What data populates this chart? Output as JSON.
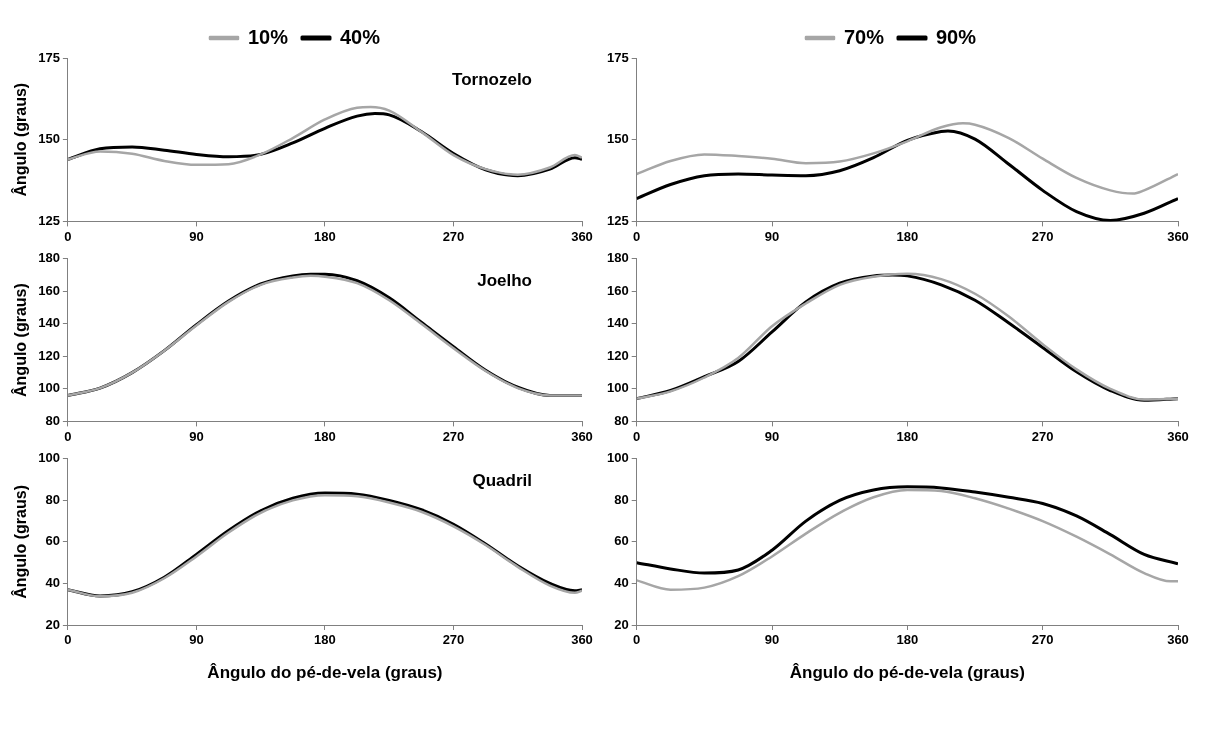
{
  "chart_data": [
    {
      "type": "line",
      "legend": "top",
      "ylabel": "Ângulo (graus)",
      "annotations": [
        "Tornozelo"
      ],
      "xlim": [
        0,
        360
      ],
      "xticks": [
        0,
        90,
        180,
        270,
        360
      ],
      "ylim": [
        125,
        175
      ],
      "yticks": [
        125,
        150,
        175
      ],
      "series": [
        {
          "name": "10%",
          "color": "#a6a6a6",
          "x": [
            0,
            22.5,
            45,
            67.5,
            90,
            112.5,
            135,
            157.5,
            180,
            202.5,
            212,
            225,
            247.5,
            270,
            292.5,
            315,
            337.5,
            355,
            360
          ],
          "values": [
            144,
            146.4,
            145.7,
            143.5,
            142.3,
            142.5,
            145.5,
            150.5,
            156.2,
            159.8,
            160,
            158.9,
            152.4,
            145.3,
            141,
            139.3,
            141.5,
            145.3,
            144.5
          ]
        },
        {
          "name": "40%",
          "color": "#000000",
          "x": [
            0,
            22.5,
            45,
            67.5,
            90,
            112.5,
            135,
            157.5,
            180,
            202.5,
            215,
            225,
            247.5,
            270,
            292.5,
            315,
            337.5,
            355,
            360
          ],
          "values": [
            144,
            147.2,
            147.8,
            146.8,
            145.5,
            144.8,
            145.5,
            149,
            153.5,
            157.2,
            158,
            157.6,
            152.5,
            145.8,
            140.8,
            139,
            141,
            144.5,
            144
          ]
        }
      ]
    },
    {
      "type": "line",
      "legend": "top",
      "xlim": [
        0,
        360
      ],
      "xticks": [
        0,
        90,
        180,
        270,
        360
      ],
      "ylim": [
        125,
        175
      ],
      "yticks": [
        125,
        150,
        175
      ],
      "series": [
        {
          "name": "70%",
          "color": "#a6a6a6",
          "x": [
            0,
            22.5,
            45,
            67.5,
            90,
            112.5,
            135,
            157.5,
            180,
            202.5,
            217,
            225,
            247.5,
            270,
            292.5,
            315,
            330,
            337.5,
            360
          ],
          "values": [
            139.5,
            143.5,
            145.5,
            145,
            144.2,
            142.8,
            143.3,
            145.8,
            149.5,
            153.8,
            155,
            154.6,
            150.5,
            144.2,
            138.3,
            134.5,
            133.5,
            134.5,
            139.5
          ]
        },
        {
          "name": "90%",
          "color": "#000000",
          "x": [
            0,
            22.5,
            45,
            67.5,
            90,
            112.5,
            135,
            157.5,
            180,
            202.5,
            207,
            225,
            247.5,
            270,
            292.5,
            315,
            337.5,
            360
          ],
          "values": [
            132,
            136.3,
            139,
            139.5,
            139.2,
            139,
            140.5,
            144.5,
            149.8,
            152.5,
            152.7,
            150.2,
            142.5,
            134.5,
            128,
            125.3,
            127.5,
            132
          ]
        }
      ]
    },
    {
      "type": "line",
      "ylabel": "Ângulo (graus)",
      "annotations": [
        "Joelho"
      ],
      "xlim": [
        0,
        360
      ],
      "xticks": [
        0,
        90,
        180,
        270,
        360
      ],
      "ylim": [
        80,
        180
      ],
      "yticks": [
        80,
        100,
        120,
        140,
        160,
        180
      ],
      "series": [
        {
          "color": "#a6a6a6",
          "x": [
            0,
            22.5,
            45,
            67.5,
            90,
            112.5,
            135,
            157.5,
            170,
            180,
            202.5,
            225,
            247.5,
            270,
            292.5,
            315,
            337.5,
            360
          ],
          "values": [
            96,
            100.5,
            110,
            123.5,
            139,
            153.5,
            164,
            168.5,
            169.5,
            169,
            165,
            154.5,
            140,
            125,
            111,
            100.5,
            96,
            96
          ]
        },
        {
          "color": "#000000",
          "x": [
            0,
            22.5,
            45,
            67.5,
            90,
            112.5,
            135,
            157.5,
            170,
            180,
            202.5,
            225,
            247.5,
            270,
            292.5,
            315,
            337.5,
            360
          ],
          "values": [
            96,
            100.5,
            110,
            123.5,
            139.5,
            154,
            164.5,
            169.5,
            170.5,
            170.5,
            166.5,
            156,
            141,
            126,
            111.5,
            101,
            96,
            96
          ]
        }
      ]
    },
    {
      "type": "line",
      "xlim": [
        0,
        360
      ],
      "xticks": [
        0,
        90,
        180,
        270,
        360
      ],
      "ylim": [
        80,
        180
      ],
      "yticks": [
        80,
        100,
        120,
        140,
        160,
        180
      ],
      "series": [
        {
          "color": "#a6a6a6",
          "x": [
            0,
            22.5,
            45,
            67.5,
            90,
            112.5,
            135,
            157.5,
            180,
            202.5,
            225,
            247.5,
            270,
            292.5,
            315,
            337.5,
            360
          ],
          "values": [
            94,
            98.5,
            107,
            119,
            138.5,
            152.5,
            164,
            169,
            170.8,
            167.5,
            158.5,
            144.5,
            127.5,
            112,
            100,
            93.5,
            94
          ]
        },
        {
          "color": "#000000",
          "x": [
            0,
            22.5,
            45,
            67.5,
            90,
            112.5,
            135,
            157.5,
            170,
            180,
            202.5,
            225,
            247.5,
            270,
            292.5,
            315,
            337.5,
            360
          ],
          "values": [
            94,
            99,
            107.5,
            116.8,
            135,
            153.5,
            165,
            169.5,
            170,
            169.5,
            164,
            154.5,
            140.5,
            125.5,
            110.5,
            99,
            93,
            94
          ]
        }
      ]
    },
    {
      "type": "line",
      "ylabel": "Ângulo (graus)",
      "xlabel": "Ângulo do pé-de-vela (graus)",
      "annotations": [
        "Quadril"
      ],
      "xlim": [
        0,
        360
      ],
      "xticks": [
        0,
        90,
        180,
        270,
        360
      ],
      "ylim": [
        20,
        100
      ],
      "yticks": [
        20,
        40,
        60,
        80,
        100
      ],
      "series": [
        {
          "color": "#a6a6a6",
          "x": [
            0,
            22.5,
            45,
            67.5,
            90,
            112.5,
            135,
            157.5,
            180,
            202.5,
            225,
            247.5,
            270,
            292.5,
            315,
            337.5,
            355,
            360
          ],
          "values": [
            37,
            33.8,
            35.5,
            42.5,
            53,
            64.5,
            74,
            80,
            82.5,
            82,
            79,
            74.5,
            67.5,
            58.5,
            48,
            39,
            35.5,
            36.5
          ]
        },
        {
          "color": "#000000",
          "x": [
            0,
            22.5,
            45,
            67.5,
            90,
            112.5,
            135,
            157.5,
            180,
            202.5,
            225,
            247.5,
            270,
            292.5,
            315,
            337.5,
            355,
            360
          ],
          "values": [
            37,
            34,
            36,
            43,
            54,
            65.5,
            75,
            81,
            83.5,
            83,
            80,
            75.5,
            68.5,
            59,
            48.5,
            40,
            36.5,
            37
          ]
        }
      ]
    },
    {
      "type": "line",
      "xlabel": "Ângulo do pé-de-vela (graus)",
      "xlim": [
        0,
        360
      ],
      "xticks": [
        0,
        90,
        180,
        270,
        360
      ],
      "ylim": [
        20,
        100
      ],
      "yticks": [
        20,
        40,
        60,
        80,
        100
      ],
      "series": [
        {
          "color": "#a6a6a6",
          "x": [
            0,
            22.5,
            45,
            67.5,
            90,
            112.5,
            135,
            157.5,
            180,
            202.5,
            225,
            247.5,
            270,
            292.5,
            315,
            337.5,
            355,
            360
          ],
          "values": [
            41.5,
            37,
            38,
            43.5,
            53,
            64,
            74,
            81.5,
            85,
            84.5,
            81,
            76,
            70,
            62.5,
            54,
            45,
            41,
            41
          ]
        },
        {
          "color": "#000000",
          "x": [
            0,
            22.5,
            45,
            67.5,
            90,
            112.5,
            135,
            157.5,
            180,
            202.5,
            225,
            247.5,
            270,
            292.5,
            315,
            337.5,
            360
          ],
          "values": [
            50,
            47,
            45,
            46.5,
            56,
            70,
            80,
            85,
            86.5,
            86,
            84,
            81.5,
            78.5,
            72.5,
            63.5,
            54,
            49.5
          ]
        }
      ]
    }
  ]
}
